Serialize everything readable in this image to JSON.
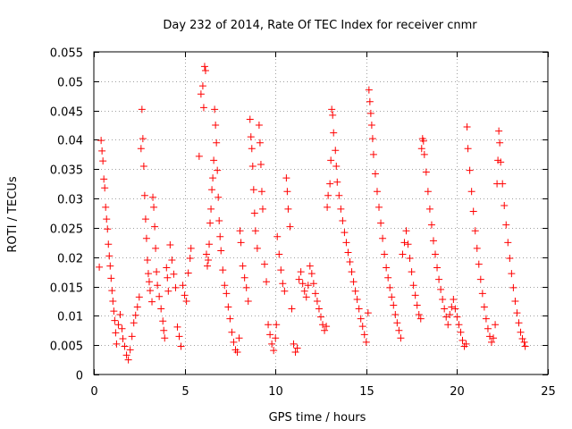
{
  "chart_data": {
    "type": "scatter",
    "title": "Day 232 of 2014, Rate Of TEC Index for receiver cnmr",
    "xlabel": "GPS time / hours",
    "ylabel": "ROTI / TECUs",
    "xlim": [
      0,
      25
    ],
    "ylim": [
      0,
      0.055
    ],
    "xticks": [
      0,
      5,
      10,
      15,
      20,
      25
    ],
    "xtick_labels": [
      "0",
      "5",
      "10",
      "15",
      "20",
      "25"
    ],
    "yticks": [
      0,
      0.005,
      0.01,
      0.015,
      0.02,
      0.025,
      0.03,
      0.035,
      0.04,
      0.045,
      0.05,
      0.055
    ],
    "ytick_labels": [
      "0",
      "0.005",
      "0.01",
      "0.015",
      "0.02",
      "0.025",
      "0.03",
      "0.035",
      "0.04",
      "0.045",
      "0.05",
      "0.055"
    ],
    "grid": true,
    "marker": "+",
    "marker_color": "#ff0000",
    "series": [
      {
        "name": "ROTI",
        "points": [
          [
            0.3,
            0.0183
          ],
          [
            0.4,
            0.0399
          ],
          [
            0.45,
            0.0381
          ],
          [
            0.5,
            0.0364
          ],
          [
            0.55,
            0.0333
          ],
          [
            0.6,
            0.0318
          ],
          [
            0.65,
            0.0285
          ],
          [
            0.7,
            0.0265
          ],
          [
            0.75,
            0.0248
          ],
          [
            0.8,
            0.0222
          ],
          [
            0.85,
            0.0202
          ],
          [
            0.9,
            0.0185
          ],
          [
            0.95,
            0.0164
          ],
          [
            1.0,
            0.0143
          ],
          [
            1.05,
            0.0125
          ],
          [
            1.1,
            0.0108
          ],
          [
            1.15,
            0.0092
          ],
          [
            1.2,
            0.0071
          ],
          [
            1.25,
            0.0052
          ],
          [
            1.35,
            0.0085
          ],
          [
            1.45,
            0.0102
          ],
          [
            1.55,
            0.0078
          ],
          [
            1.6,
            0.0061
          ],
          [
            1.7,
            0.0048
          ],
          [
            1.8,
            0.0033
          ],
          [
            1.9,
            0.0025
          ],
          [
            2.0,
            0.0042
          ],
          [
            2.1,
            0.0065
          ],
          [
            2.2,
            0.0088
          ],
          [
            2.3,
            0.0101
          ],
          [
            2.4,
            0.0115
          ],
          [
            2.5,
            0.0132
          ],
          [
            2.6,
            0.0385
          ],
          [
            2.65,
            0.0452
          ],
          [
            2.7,
            0.0402
          ],
          [
            2.75,
            0.0355
          ],
          [
            2.8,
            0.0305
          ],
          [
            2.85,
            0.0265
          ],
          [
            2.9,
            0.0232
          ],
          [
            2.95,
            0.0195
          ],
          [
            3.0,
            0.0172
          ],
          [
            3.05,
            0.0158
          ],
          [
            3.1,
            0.0143
          ],
          [
            3.2,
            0.0124
          ],
          [
            3.25,
            0.0302
          ],
          [
            3.3,
            0.0285
          ],
          [
            3.35,
            0.0252
          ],
          [
            3.4,
            0.0215
          ],
          [
            3.45,
            0.0175
          ],
          [
            3.5,
            0.0152
          ],
          [
            3.6,
            0.0133
          ],
          [
            3.7,
            0.0112
          ],
          [
            3.8,
            0.0091
          ],
          [
            3.85,
            0.0075
          ],
          [
            3.9,
            0.0062
          ],
          [
            4.0,
            0.0182
          ],
          [
            4.05,
            0.0165
          ],
          [
            4.1,
            0.0142
          ],
          [
            4.2,
            0.0221
          ],
          [
            4.3,
            0.0195
          ],
          [
            4.4,
            0.0171
          ],
          [
            4.5,
            0.0148
          ],
          [
            4.6,
            0.0081
          ],
          [
            4.7,
            0.0065
          ],
          [
            4.8,
            0.0048
          ],
          [
            4.9,
            0.0152
          ],
          [
            5.0,
            0.0135
          ],
          [
            5.1,
            0.0125
          ],
          [
            5.2,
            0.0173
          ],
          [
            5.3,
            0.0198
          ],
          [
            5.35,
            0.0215
          ],
          [
            5.8,
            0.0372
          ],
          [
            5.9,
            0.0478
          ],
          [
            6.0,
            0.0492
          ],
          [
            6.05,
            0.0455
          ],
          [
            6.1,
            0.0525
          ],
          [
            6.15,
            0.0518
          ],
          [
            6.2,
            0.0205
          ],
          [
            6.25,
            0.0185
          ],
          [
            6.3,
            0.0195
          ],
          [
            6.35,
            0.0222
          ],
          [
            6.4,
            0.0258
          ],
          [
            6.45,
            0.0282
          ],
          [
            6.5,
            0.0315
          ],
          [
            6.55,
            0.0335
          ],
          [
            6.6,
            0.0365
          ],
          [
            6.65,
            0.0452
          ],
          [
            6.7,
            0.0425
          ],
          [
            6.75,
            0.0395
          ],
          [
            6.8,
            0.0348
          ],
          [
            6.85,
            0.0302
          ],
          [
            6.9,
            0.0262
          ],
          [
            6.95,
            0.0235
          ],
          [
            7.0,
            0.0211
          ],
          [
            7.1,
            0.0178
          ],
          [
            7.2,
            0.0152
          ],
          [
            7.3,
            0.0138
          ],
          [
            7.4,
            0.0115
          ],
          [
            7.5,
            0.0095
          ],
          [
            7.6,
            0.0072
          ],
          [
            7.7,
            0.0055
          ],
          [
            7.8,
            0.0042
          ],
          [
            7.9,
            0.0038
          ],
          [
            8.0,
            0.0062
          ],
          [
            8.05,
            0.0245
          ],
          [
            8.1,
            0.0225
          ],
          [
            8.2,
            0.0185
          ],
          [
            8.3,
            0.0165
          ],
          [
            8.4,
            0.0148
          ],
          [
            8.5,
            0.0125
          ],
          [
            8.6,
            0.0435
          ],
          [
            8.65,
            0.0405
          ],
          [
            8.7,
            0.0385
          ],
          [
            8.75,
            0.0355
          ],
          [
            8.8,
            0.0315
          ],
          [
            8.85,
            0.0275
          ],
          [
            8.9,
            0.0245
          ],
          [
            9.0,
            0.0215
          ],
          [
            9.1,
            0.0425
          ],
          [
            9.15,
            0.0395
          ],
          [
            9.2,
            0.0358
          ],
          [
            9.25,
            0.0312
          ],
          [
            9.3,
            0.0282
          ],
          [
            9.4,
            0.0188
          ],
          [
            9.5,
            0.0158
          ],
          [
            9.6,
            0.0085
          ],
          [
            9.7,
            0.0068
          ],
          [
            9.8,
            0.0052
          ],
          [
            9.9,
            0.0041
          ],
          [
            10.0,
            0.0062
          ],
          [
            10.05,
            0.0085
          ],
          [
            10.1,
            0.0235
          ],
          [
            10.2,
            0.0205
          ],
          [
            10.3,
            0.0178
          ],
          [
            10.4,
            0.0155
          ],
          [
            10.5,
            0.0142
          ],
          [
            10.6,
            0.0335
          ],
          [
            10.65,
            0.0312
          ],
          [
            10.7,
            0.0282
          ],
          [
            10.8,
            0.0252
          ],
          [
            10.9,
            0.0112
          ],
          [
            11.0,
            0.0052
          ],
          [
            11.1,
            0.0038
          ],
          [
            11.2,
            0.0045
          ],
          [
            11.3,
            0.0162
          ],
          [
            11.4,
            0.0175
          ],
          [
            11.5,
            0.0155
          ],
          [
            11.6,
            0.0142
          ],
          [
            11.7,
            0.0132
          ],
          [
            11.8,
            0.0152
          ],
          [
            11.9,
            0.0185
          ],
          [
            12.0,
            0.0172
          ],
          [
            12.1,
            0.0155
          ],
          [
            12.2,
            0.0138
          ],
          [
            12.3,
            0.0125
          ],
          [
            12.4,
            0.0112
          ],
          [
            12.5,
            0.0098
          ],
          [
            12.6,
            0.0085
          ],
          [
            12.7,
            0.0075
          ],
          [
            12.8,
            0.0082
          ],
          [
            12.85,
            0.0285
          ],
          [
            12.9,
            0.0305
          ],
          [
            13.0,
            0.0325
          ],
          [
            13.05,
            0.0365
          ],
          [
            13.1,
            0.0452
          ],
          [
            13.15,
            0.0442
          ],
          [
            13.2,
            0.0412
          ],
          [
            13.3,
            0.0382
          ],
          [
            13.35,
            0.0355
          ],
          [
            13.4,
            0.0328
          ],
          [
            13.5,
            0.0305
          ],
          [
            13.6,
            0.0282
          ],
          [
            13.7,
            0.0262
          ],
          [
            13.8,
            0.0242
          ],
          [
            13.9,
            0.0225
          ],
          [
            14.0,
            0.0208
          ],
          [
            14.1,
            0.0192
          ],
          [
            14.2,
            0.0175
          ],
          [
            14.3,
            0.0158
          ],
          [
            14.4,
            0.0142
          ],
          [
            14.5,
            0.0128
          ],
          [
            14.6,
            0.0112
          ],
          [
            14.7,
            0.0095
          ],
          [
            14.8,
            0.0082
          ],
          [
            14.9,
            0.0068
          ],
          [
            15.0,
            0.0055
          ],
          [
            15.1,
            0.0105
          ],
          [
            15.15,
            0.0485
          ],
          [
            15.2,
            0.0465
          ],
          [
            15.25,
            0.0445
          ],
          [
            15.3,
            0.0425
          ],
          [
            15.35,
            0.0402
          ],
          [
            15.4,
            0.0375
          ],
          [
            15.5,
            0.0342
          ],
          [
            15.6,
            0.0312
          ],
          [
            15.7,
            0.0285
          ],
          [
            15.8,
            0.0258
          ],
          [
            15.9,
            0.0232
          ],
          [
            16.0,
            0.0205
          ],
          [
            16.1,
            0.0182
          ],
          [
            16.2,
            0.0165
          ],
          [
            16.3,
            0.0148
          ],
          [
            16.4,
            0.0132
          ],
          [
            16.5,
            0.0118
          ],
          [
            16.6,
            0.0102
          ],
          [
            16.7,
            0.0088
          ],
          [
            16.8,
            0.0075
          ],
          [
            16.9,
            0.0062
          ],
          [
            17.0,
            0.0205
          ],
          [
            17.1,
            0.0225
          ],
          [
            17.2,
            0.0245
          ],
          [
            17.3,
            0.0222
          ],
          [
            17.4,
            0.0198
          ],
          [
            17.5,
            0.0175
          ],
          [
            17.6,
            0.0152
          ],
          [
            17.7,
            0.0135
          ],
          [
            17.8,
            0.0118
          ],
          [
            17.9,
            0.0102
          ],
          [
            18.0,
            0.0095
          ],
          [
            18.05,
            0.0385
          ],
          [
            18.1,
            0.0402
          ],
          [
            18.15,
            0.0398
          ],
          [
            18.2,
            0.0375
          ],
          [
            18.3,
            0.0345
          ],
          [
            18.4,
            0.0312
          ],
          [
            18.5,
            0.0282
          ],
          [
            18.6,
            0.0255
          ],
          [
            18.7,
            0.0228
          ],
          [
            18.8,
            0.0205
          ],
          [
            18.9,
            0.0182
          ],
          [
            19.0,
            0.0162
          ],
          [
            19.1,
            0.0145
          ],
          [
            19.2,
            0.0128
          ],
          [
            19.3,
            0.0112
          ],
          [
            19.4,
            0.0098
          ],
          [
            19.5,
            0.0085
          ],
          [
            19.6,
            0.0102
          ],
          [
            19.7,
            0.0115
          ],
          [
            19.8,
            0.0128
          ],
          [
            19.9,
            0.0112
          ],
          [
            20.0,
            0.0098
          ],
          [
            20.1,
            0.0085
          ],
          [
            20.2,
            0.0072
          ],
          [
            20.3,
            0.0058
          ],
          [
            20.4,
            0.0048
          ],
          [
            20.5,
            0.0052
          ],
          [
            20.55,
            0.0422
          ],
          [
            20.6,
            0.0385
          ],
          [
            20.7,
            0.0348
          ],
          [
            20.8,
            0.0312
          ],
          [
            20.9,
            0.0278
          ],
          [
            21.0,
            0.0245
          ],
          [
            21.1,
            0.0215
          ],
          [
            21.2,
            0.0188
          ],
          [
            21.3,
            0.0162
          ],
          [
            21.4,
            0.0138
          ],
          [
            21.5,
            0.0115
          ],
          [
            21.6,
            0.0095
          ],
          [
            21.7,
            0.0078
          ],
          [
            21.8,
            0.0065
          ],
          [
            21.9,
            0.0055
          ],
          [
            22.0,
            0.0062
          ],
          [
            22.1,
            0.0085
          ],
          [
            22.2,
            0.0325
          ],
          [
            22.25,
            0.0365
          ],
          [
            22.3,
            0.0415
          ],
          [
            22.35,
            0.0395
          ],
          [
            22.4,
            0.0362
          ],
          [
            22.5,
            0.0325
          ],
          [
            22.6,
            0.0288
          ],
          [
            22.7,
            0.0255
          ],
          [
            22.8,
            0.0225
          ],
          [
            22.9,
            0.0198
          ],
          [
            23.0,
            0.0172
          ],
          [
            23.1,
            0.0148
          ],
          [
            23.2,
            0.0125
          ],
          [
            23.3,
            0.0105
          ],
          [
            23.4,
            0.0088
          ],
          [
            23.5,
            0.0072
          ],
          [
            23.6,
            0.0061
          ],
          [
            23.7,
            0.0055
          ],
          [
            23.75,
            0.0048
          ]
        ]
      }
    ]
  }
}
